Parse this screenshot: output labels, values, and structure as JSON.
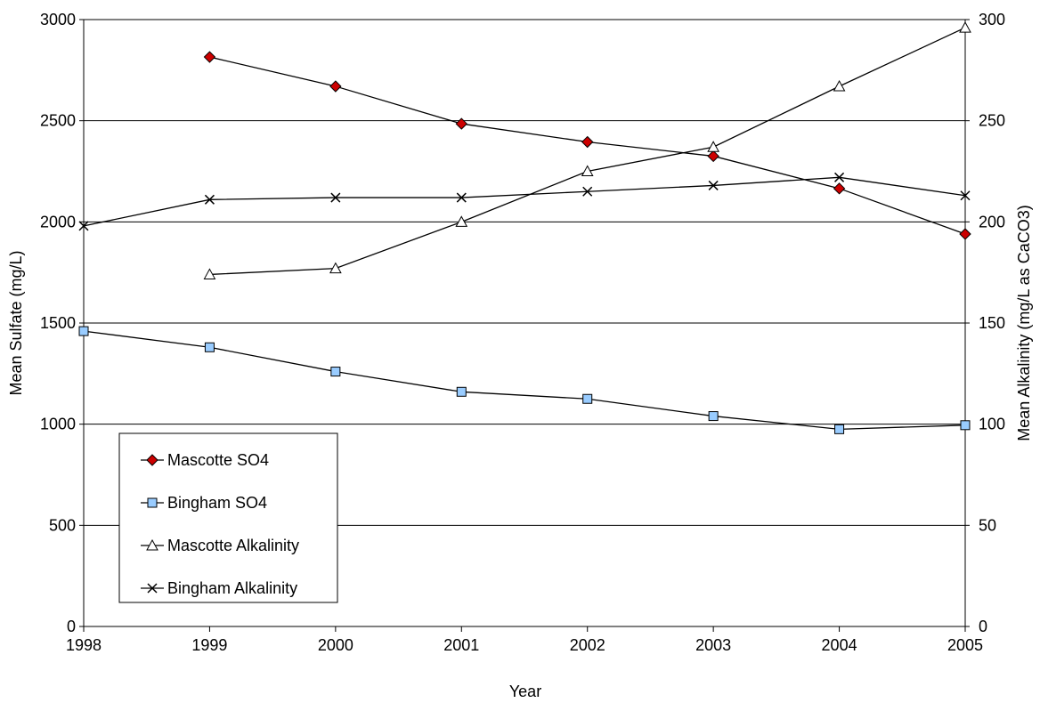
{
  "chart_data": {
    "type": "line",
    "title": "",
    "xlabel": "Year",
    "ylabel": "Mean Sulfate (mg/L)",
    "y2label": "Mean Alkalinity (mg/L as CaCO3)",
    "x": [
      1998,
      1999,
      2000,
      2001,
      2002,
      2003,
      2004,
      2005
    ],
    "x_ticks": [
      "1998",
      "1999",
      "2000",
      "2001",
      "2002",
      "2003",
      "2004",
      "2005"
    ],
    "ylim": [
      0,
      3000
    ],
    "y_ticks": [
      "0",
      "500",
      "1000",
      "1500",
      "2000",
      "2500",
      "3000"
    ],
    "y2lim": [
      0,
      300
    ],
    "y2_ticks": [
      "0",
      "50",
      "100",
      "150",
      "200",
      "250",
      "300"
    ],
    "grid": "horizontal",
    "legend_position": "bottom-left",
    "series": [
      {
        "name": "Mascotte SO4",
        "axis": "left",
        "marker": "diamond",
        "color": "#cc0000",
        "x": [
          1999,
          2000,
          2001,
          2002,
          2003,
          2004,
          2005
        ],
        "values": [
          2815,
          2670,
          2485,
          2395,
          2325,
          2165,
          1940
        ]
      },
      {
        "name": "Bingham SO4",
        "axis": "left",
        "marker": "square",
        "color": "#99ccff",
        "x": [
          1998,
          1999,
          2000,
          2001,
          2002,
          2003,
          2004,
          2005
        ],
        "values": [
          1460,
          1380,
          1260,
          1160,
          1125,
          1040,
          975,
          995
        ]
      },
      {
        "name": "Mascotte Alkalinity",
        "axis": "right",
        "marker": "triangle",
        "color": "#ffffff",
        "x": [
          1999,
          2000,
          2001,
          2002,
          2003,
          2004,
          2005
        ],
        "values": [
          174,
          177,
          200,
          225,
          237,
          267,
          296
        ]
      },
      {
        "name": "Bingham Alkalinity",
        "axis": "right",
        "marker": "x",
        "color": "#000000",
        "x": [
          1998,
          1999,
          2000,
          2001,
          2002,
          2003,
          2004,
          2005
        ],
        "values": [
          198,
          211,
          212,
          212,
          215,
          218,
          222,
          213
        ]
      }
    ]
  }
}
